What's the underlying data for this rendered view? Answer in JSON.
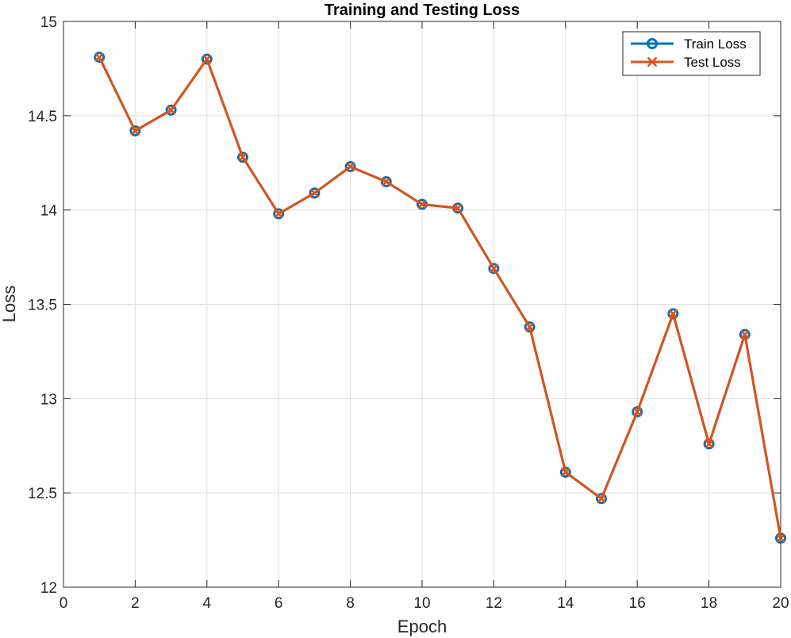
{
  "chart_data": {
    "type": "line",
    "title": "Training and Testing Loss",
    "xlabel": "Epoch",
    "ylabel": "Loss",
    "xlim": [
      0,
      20
    ],
    "ylim": [
      12,
      15
    ],
    "xticks": [
      "0",
      "2",
      "4",
      "6",
      "8",
      "10",
      "12",
      "14",
      "16",
      "18",
      "20"
    ],
    "yticks": [
      "12",
      "12.5",
      "13",
      "13.5",
      "14",
      "14.5",
      "15"
    ],
    "grid": true,
    "legend_position": "top-right",
    "x": [
      1,
      2,
      3,
      4,
      5,
      6,
      7,
      8,
      9,
      10,
      11,
      12,
      13,
      14,
      15,
      16,
      17,
      18,
      19,
      20
    ],
    "series": [
      {
        "name": "Train Loss",
        "marker": "circle",
        "color": "#0072BD",
        "values": [
          14.81,
          14.42,
          14.53,
          14.8,
          14.28,
          13.98,
          14.09,
          14.23,
          14.15,
          14.03,
          14.01,
          13.69,
          13.38,
          12.61,
          12.47,
          12.93,
          13.45,
          12.76,
          13.34,
          12.26
        ]
      },
      {
        "name": "Test Loss",
        "marker": "x",
        "color": "#D95319",
        "values": [
          14.81,
          14.42,
          14.53,
          14.8,
          14.28,
          13.98,
          14.09,
          14.23,
          14.15,
          14.03,
          14.01,
          13.69,
          13.38,
          12.61,
          12.47,
          12.93,
          13.45,
          12.76,
          13.34,
          12.26
        ]
      }
    ]
  }
}
